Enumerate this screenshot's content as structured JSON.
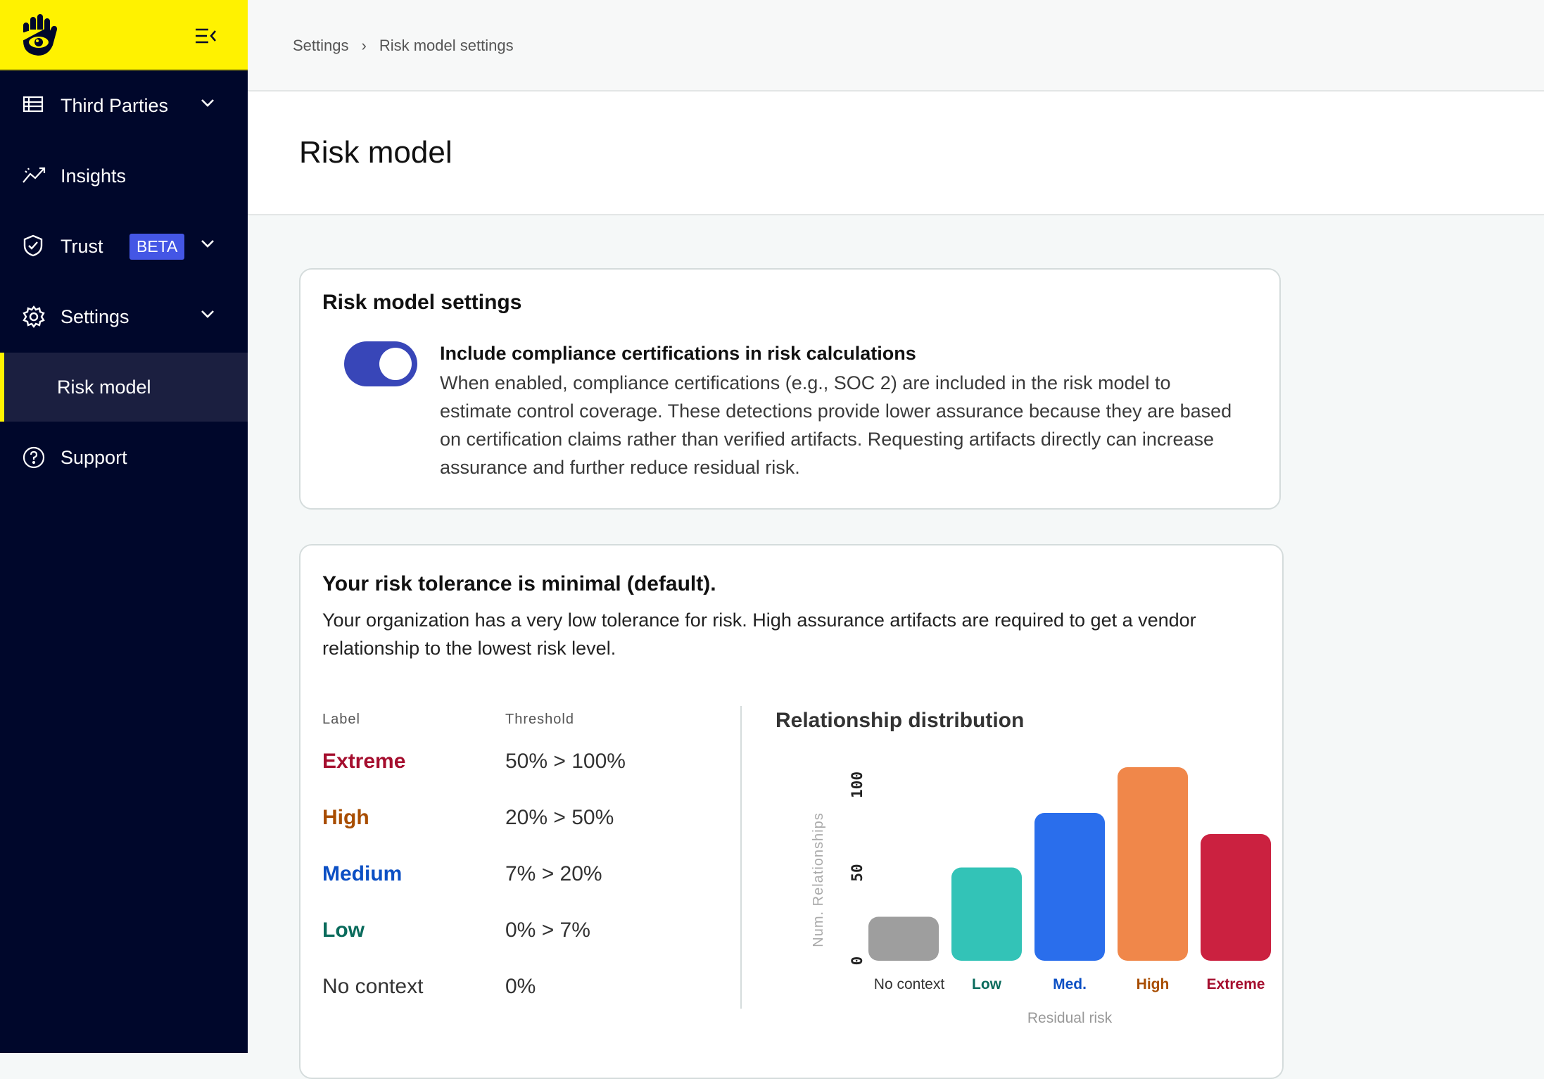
{
  "sidebar": {
    "items": [
      {
        "label": "Third Parties",
        "icon": "table-icon"
      },
      {
        "label": "Insights",
        "icon": "trend-icon"
      },
      {
        "label": "Trust",
        "icon": "shield-check-icon",
        "badge": "BETA"
      },
      {
        "label": "Settings",
        "icon": "gear-icon"
      },
      {
        "label": "Risk model",
        "active": true
      },
      {
        "label": "Support",
        "icon": "help-circle-icon"
      }
    ]
  },
  "breadcrumb": [
    "Settings",
    "Risk model settings"
  ],
  "page_title": "Risk model",
  "settings_card": {
    "title": "Risk model settings",
    "toggle_on": true,
    "toggle_label": "Include compliance certifications in risk calculations",
    "toggle_desc": "When enabled, compliance certifications (e.g., SOC 2) are included in the risk model to estimate control coverage. These detections provide lower assurance because they are based on certification claims rather than verified artifacts. Requesting artifacts directly can increase assurance and further reduce residual risk."
  },
  "tolerance_card": {
    "title": "Your risk tolerance is minimal (default).",
    "desc": "Your organization has a very low tolerance for risk. High assurance artifacts are required to get a vendor relationship to the lowest risk level.",
    "col_label": "Label",
    "col_threshold": "Threshold",
    "rows": [
      {
        "label": "Extreme",
        "threshold": "50% > 100%",
        "color": "#a50e2e"
      },
      {
        "label": "High",
        "threshold": "20% > 50%",
        "color": "#a84d00"
      },
      {
        "label": "Medium",
        "threshold": "7% > 20%",
        "color": "#0b4fc4"
      },
      {
        "label": "Low",
        "threshold": "0% > 7%",
        "color": "#0a6b5c"
      },
      {
        "label": "No context",
        "threshold": "0%",
        "color": "#333333"
      }
    ]
  },
  "chart_data": {
    "type": "bar",
    "title": "Relationship distribution",
    "xlabel": "Residual risk",
    "ylabel": "Num. Relationships",
    "categories": [
      "No context",
      "Low",
      "Med.",
      "High",
      "Extreme"
    ],
    "values": [
      25,
      53,
      84,
      110,
      72
    ],
    "bar_colors": [
      "#9e9e9e",
      "#33c3b7",
      "#2a6eec",
      "#f0874a",
      "#cb2140"
    ],
    "label_colors": [
      "#333333",
      "#0a6b5c",
      "#0b4fc4",
      "#a84d00",
      "#a50e2e"
    ],
    "yticks": [
      0,
      50,
      100
    ],
    "ylim": [
      0,
      110
    ],
    "grid": false
  },
  "colors": {
    "brand": "#fff200",
    "sidebar": "#00072b",
    "toggle": "#3846b8"
  }
}
